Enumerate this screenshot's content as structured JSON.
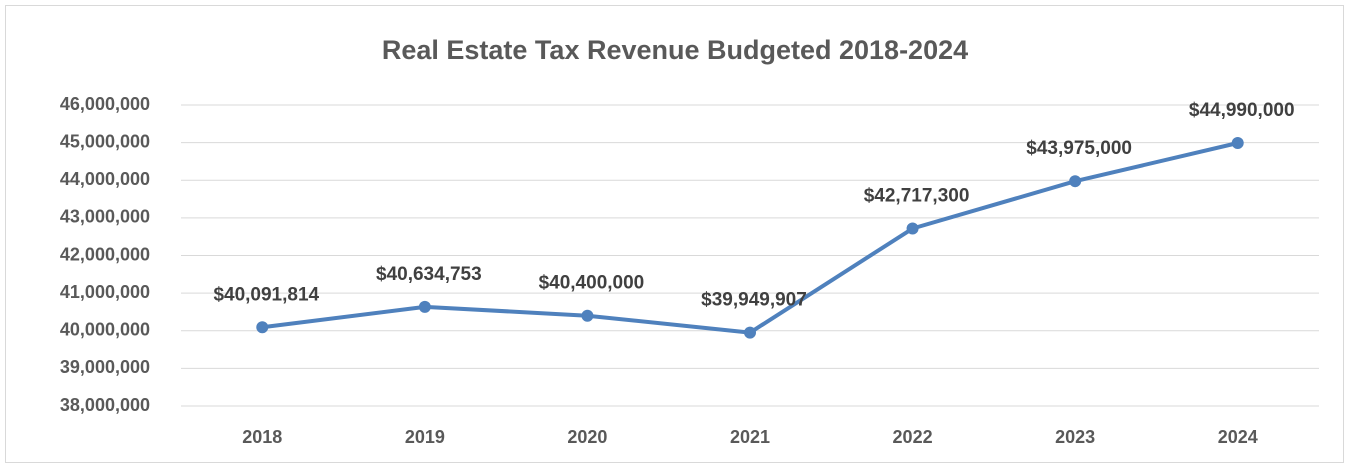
{
  "chart_data": {
    "type": "line",
    "title": "Real Estate Tax Revenue Budgeted 2018-2024",
    "categories": [
      "2018",
      "2019",
      "2020",
      "2021",
      "2022",
      "2023",
      "2024"
    ],
    "values": [
      40091814,
      40634753,
      40400000,
      39949907,
      42717300,
      43975000,
      44990000
    ],
    "value_labels": [
      "$40,091,814",
      "$40,634,753",
      "$40,400,000",
      "$39,949,907",
      "$42,717,300",
      "$43,975,000",
      "$44,990,000"
    ],
    "color": "#4f81bd",
    "ylim": [
      38000000,
      46000000
    ],
    "yticks": [
      {
        "value": 38000000,
        "label": "38,000,000"
      },
      {
        "value": 39000000,
        "label": "39,000,000"
      },
      {
        "value": 40000000,
        "label": "40,000,000"
      },
      {
        "value": 41000000,
        "label": "41,000,000"
      },
      {
        "value": 42000000,
        "label": "42,000,000"
      },
      {
        "value": 43000000,
        "label": "43,000,000"
      },
      {
        "value": 44000000,
        "label": "44,000,000"
      },
      {
        "value": 45000000,
        "label": "45,000,000"
      },
      {
        "value": 46000000,
        "label": "46,000,000"
      }
    ],
    "grid": true
  }
}
